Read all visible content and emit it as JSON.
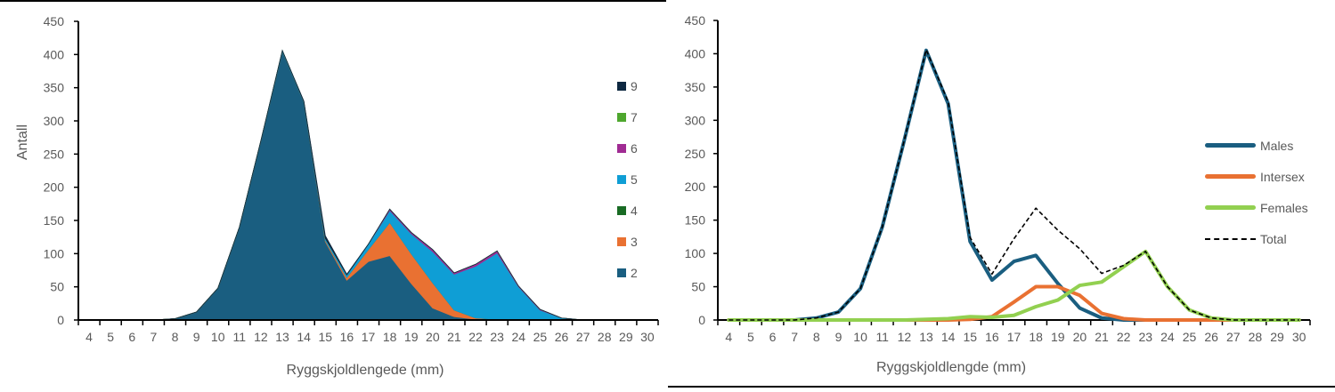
{
  "chart_data": [
    {
      "type": "area",
      "stacked": true,
      "title": "",
      "xlabel": "Ryggskjoldlengede (mm)",
      "ylabel": "Antall",
      "ylim": [
        0,
        450
      ],
      "yticks": [
        0,
        50,
        100,
        150,
        200,
        250,
        300,
        350,
        400,
        450
      ],
      "grid": false,
      "legend_position": "right",
      "categories": [
        4,
        5,
        6,
        7,
        8,
        9,
        10,
        11,
        12,
        13,
        14,
        15,
        16,
        17,
        18,
        19,
        20,
        21,
        22,
        23,
        24,
        25,
        26,
        27,
        28,
        29,
        30
      ],
      "series": [
        {
          "name": "2",
          "color": "#1A5E80",
          "values": [
            0,
            0,
            0,
            0,
            2,
            12,
            48,
            140,
            270,
            405,
            328,
            118,
            60,
            88,
            97,
            55,
            18,
            5,
            1,
            0,
            0,
            0,
            0,
            0,
            0,
            0,
            0
          ]
        },
        {
          "name": "3",
          "color": "#E97132",
          "values": [
            0,
            0,
            0,
            0,
            0,
            0,
            0,
            0,
            0,
            0,
            0,
            2,
            4,
            18,
            50,
            45,
            38,
            10,
            2,
            1,
            0,
            0,
            0,
            0,
            0,
            0,
            0
          ]
        },
        {
          "name": "4",
          "color": "#196B24",
          "values": [
            0,
            0,
            0,
            0,
            0,
            0,
            0,
            0,
            0,
            0,
            0,
            0,
            0,
            0,
            0,
            0,
            0,
            0,
            0,
            0,
            0,
            0,
            0,
            0,
            0,
            0,
            0
          ]
        },
        {
          "name": "5",
          "color": "#0F9ED5",
          "values": [
            0,
            0,
            0,
            0,
            0,
            0,
            0,
            0,
            0,
            1,
            1,
            3,
            4,
            8,
            18,
            30,
            47,
            54,
            78,
            100,
            50,
            15,
            3,
            0,
            0,
            0,
            0
          ]
        },
        {
          "name": "6",
          "color": "#A02B93",
          "values": [
            0,
            0,
            0,
            0,
            0,
            0,
            0,
            0,
            0,
            0,
            0,
            0,
            0,
            0,
            2,
            2,
            3,
            2,
            3,
            3,
            1,
            1,
            0,
            0,
            0,
            0,
            0
          ]
        },
        {
          "name": "7",
          "color": "#4EA72E",
          "values": [
            0,
            0,
            0,
            0,
            0,
            0,
            0,
            0,
            0,
            0,
            0,
            0,
            0,
            0,
            0,
            0,
            0,
            0,
            0,
            0,
            0,
            0,
            0,
            0,
            0,
            0,
            0
          ]
        },
        {
          "name": "9",
          "color": "#0E2841",
          "values": [
            0,
            0,
            0,
            0,
            0,
            0,
            0,
            0,
            0,
            0,
            1,
            4,
            1,
            0,
            0,
            0,
            0,
            0,
            0,
            0,
            0,
            0,
            0,
            0,
            0,
            0,
            0
          ]
        }
      ]
    },
    {
      "type": "line",
      "title": "",
      "xlabel": "Ryggskjoldlengde (mm)",
      "ylabel": "",
      "ylim": [
        0,
        450
      ],
      "yticks": [
        0,
        50,
        100,
        150,
        200,
        250,
        300,
        350,
        400,
        450
      ],
      "grid": false,
      "legend_position": "right",
      "categories": [
        4,
        5,
        6,
        7,
        8,
        9,
        10,
        11,
        12,
        13,
        14,
        15,
        16,
        17,
        18,
        19,
        20,
        21,
        22,
        23,
        24,
        25,
        26,
        27,
        28,
        29,
        30
      ],
      "series": [
        {
          "name": "Males",
          "color": "#1A5E80",
          "style": "solid",
          "values": [
            0,
            0,
            0,
            0,
            3,
            12,
            47,
            140,
            270,
            405,
            325,
            118,
            60,
            88,
            97,
            55,
            18,
            3,
            0,
            0,
            0,
            0,
            0,
            0,
            0,
            0,
            0
          ]
        },
        {
          "name": "Intersex",
          "color": "#E97132",
          "style": "solid",
          "values": [
            0,
            0,
            0,
            0,
            0,
            0,
            0,
            0,
            0,
            0,
            0,
            1,
            5,
            27,
            50,
            50,
            37,
            10,
            2,
            0,
            0,
            0,
            0,
            0,
            0,
            0,
            0
          ]
        },
        {
          "name": "Females",
          "color": "#92D050",
          "style": "solid",
          "values": [
            0,
            0,
            0,
            0,
            0,
            0,
            0,
            0,
            0,
            1,
            2,
            5,
            4,
            7,
            20,
            30,
            52,
            57,
            80,
            103,
            50,
            15,
            3,
            0,
            0,
            0,
            0
          ]
        },
        {
          "name": "Total",
          "color": "#000000",
          "style": "dashed",
          "values": [
            0,
            0,
            0,
            0,
            3,
            12,
            47,
            140,
            270,
            406,
            328,
            124,
            69,
            122,
            168,
            135,
            107,
            70,
            82,
            103,
            50,
            15,
            3,
            0,
            0,
            0,
            0
          ]
        }
      ]
    }
  ],
  "left_chart": {
    "ylabel": "Antall",
    "xlabel": "Ryggskjoldlengede (mm)",
    "legend": [
      {
        "label": "9",
        "color": "#0E2841"
      },
      {
        "label": "7",
        "color": "#4EA72E"
      },
      {
        "label": "6",
        "color": "#A02B93"
      },
      {
        "label": "5",
        "color": "#0F9ED5"
      },
      {
        "label": "4",
        "color": "#196B24"
      },
      {
        "label": "3",
        "color": "#E97132"
      },
      {
        "label": "2",
        "color": "#1A5E80"
      }
    ]
  },
  "right_chart": {
    "xlabel": "Ryggskjoldlengde (mm)",
    "legend": [
      {
        "label": "Males",
        "color": "#1A5E80",
        "style": "solid"
      },
      {
        "label": "Intersex",
        "color": "#E97132",
        "style": "solid"
      },
      {
        "label": "Females",
        "color": "#92D050",
        "style": "solid"
      },
      {
        "label": "Total",
        "color": "#000000",
        "style": "dashed"
      }
    ]
  }
}
